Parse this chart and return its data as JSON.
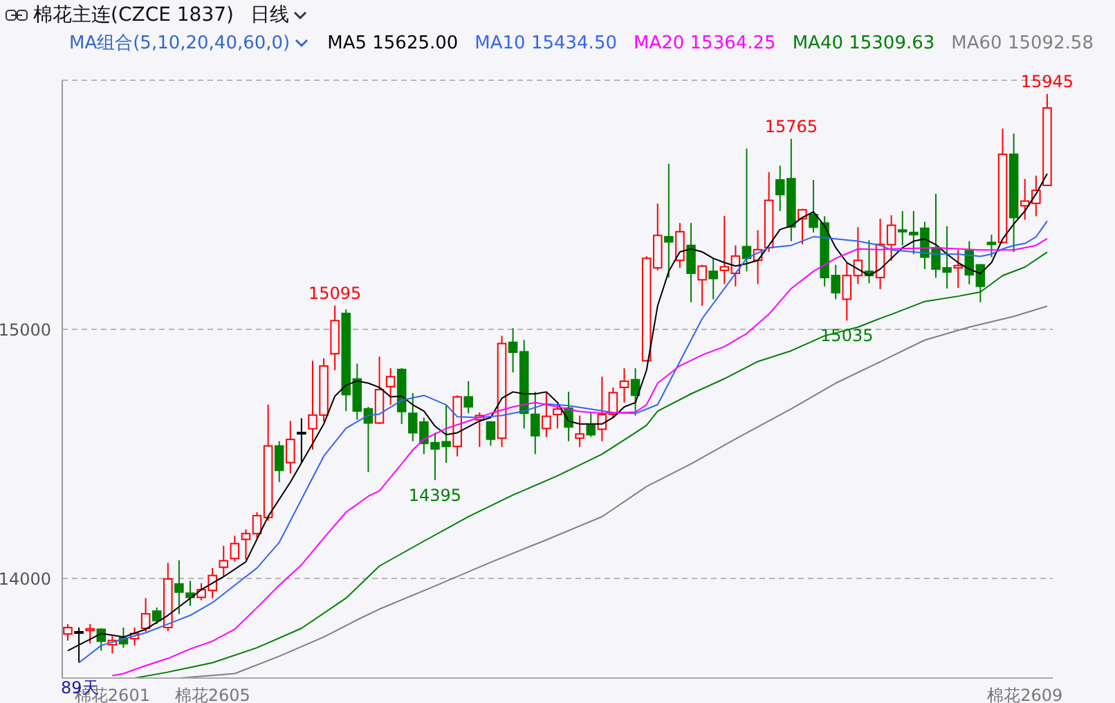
{
  "chart_data": {
    "type": "candlestick",
    "title": "棉花主连(CZCE 1837)",
    "subtitle": "日线",
    "legend_title": "MA组合(5,10,20,40,60,0)",
    "legend": "top",
    "grid": "y",
    "ylim": [
      13600,
      16000
    ],
    "yticks": [
      14000,
      15000
    ],
    "categories": [
      null,
      null,
      null,
      null,
      "棉花2601",
      null,
      null,
      null,
      null,
      null,
      null,
      null,
      null,
      "棉花2605",
      null,
      null,
      null,
      null,
      null,
      null,
      null,
      null,
      null,
      null,
      null,
      null,
      null,
      null,
      null,
      null,
      null,
      null,
      null,
      null,
      null,
      null,
      null,
      null,
      null,
      null,
      null,
      null,
      null,
      null,
      null,
      null,
      null,
      null,
      null,
      null,
      null,
      null,
      null,
      null,
      null,
      null,
      null,
      null,
      null,
      null,
      null,
      null,
      null,
      null,
      null,
      null,
      null,
      null,
      null,
      null,
      null,
      null,
      null,
      null,
      null,
      null,
      null,
      null,
      null,
      null,
      null,
      null,
      null,
      null,
      null,
      null,
      "棉花2609",
      null,
      null
    ],
    "ohlc": [
      [
        13777,
        13817,
        13751,
        13803
      ],
      [
        13786,
        13803,
        13662,
        13786
      ],
      [
        13791,
        13817,
        13739,
        13798
      ],
      [
        13796,
        13800,
        13710,
        13748
      ],
      [
        13734,
        13774,
        13700,
        13751
      ],
      [
        13762,
        13803,
        13722,
        13738
      ],
      [
        13758,
        13803,
        13731,
        13779
      ],
      [
        13800,
        13921,
        13786,
        13858
      ],
      [
        13869,
        13883,
        13817,
        13831
      ],
      [
        13803,
        14062,
        13789,
        13998
      ],
      [
        13978,
        14073,
        13857,
        13945
      ],
      [
        13941,
        13990,
        13890,
        13924
      ],
      [
        13924,
        13981,
        13912,
        13955
      ],
      [
        13952,
        14042,
        13921,
        14012
      ],
      [
        14045,
        14131,
        14007,
        14071
      ],
      [
        14080,
        14171,
        14068,
        14140
      ],
      [
        14157,
        14197,
        14076,
        14180
      ],
      [
        14180,
        14266,
        14162,
        14252
      ],
      [
        14245,
        14698,
        14232,
        14532
      ],
      [
        14532,
        14551,
        14387,
        14434
      ],
      [
        14465,
        14632,
        14422,
        14558
      ],
      [
        14586,
        14643,
        14465,
        14586
      ],
      [
        14601,
        14874,
        14517,
        14656
      ],
      [
        14656,
        14884,
        14629,
        14853
      ],
      [
        14902,
        15095,
        14836,
        15035
      ],
      [
        15064,
        15080,
        14672,
        14738
      ],
      [
        14801,
        14862,
        14637,
        14672
      ],
      [
        14681,
        14689,
        14427,
        14624
      ],
      [
        14624,
        14891,
        14620,
        14758
      ],
      [
        14770,
        14844,
        14697,
        14810
      ],
      [
        14839,
        14845,
        14620,
        14670
      ],
      [
        14663,
        14744,
        14551,
        14585
      ],
      [
        14628,
        14646,
        14499,
        14542
      ],
      [
        14545,
        14585,
        14395,
        14520
      ],
      [
        14549,
        14697,
        14464,
        14530
      ],
      [
        14530,
        14735,
        14490,
        14729
      ],
      [
        14729,
        14792,
        14663,
        14689
      ],
      [
        14637,
        14666,
        14528,
        14654
      ],
      [
        14628,
        14632,
        14533,
        14559
      ],
      [
        14563,
        14974,
        14528,
        14943
      ],
      [
        14948,
        15005,
        14827,
        14908
      ],
      [
        14910,
        14957,
        14602,
        14663
      ],
      [
        14659,
        14749,
        14499,
        14573
      ],
      [
        14602,
        14749,
        14568,
        14651
      ],
      [
        14658,
        14697,
        14602,
        14680
      ],
      [
        14684,
        14749,
        14551,
        14608
      ],
      [
        14563,
        14654,
        14528,
        14580
      ],
      [
        14615,
        14666,
        14568,
        14577
      ],
      [
        14599,
        14810,
        14551,
        14658
      ],
      [
        14659,
        14767,
        14646,
        14746
      ],
      [
        14767,
        14844,
        14706,
        14792
      ],
      [
        14798,
        14844,
        14654,
        14735
      ],
      [
        14874,
        15294,
        14871,
        15285
      ],
      [
        15247,
        15505,
        15237,
        15377
      ],
      [
        15372,
        15665,
        15208,
        15351
      ],
      [
        15277,
        15427,
        15247,
        15392
      ],
      [
        15337,
        15427,
        15109,
        15225
      ],
      [
        15199,
        15259,
        15095,
        15254
      ],
      [
        15233,
        15285,
        15121,
        15204
      ],
      [
        15237,
        15455,
        15182,
        15251
      ],
      [
        15225,
        15337,
        15173,
        15294
      ],
      [
        15332,
        15726,
        15233,
        15285
      ],
      [
        15277,
        15398,
        15182,
        15320
      ],
      [
        15328,
        15631,
        15311,
        15518
      ],
      [
        15600,
        15657,
        15475,
        15541
      ],
      [
        15605,
        15765,
        15354,
        15411
      ],
      [
        15444,
        15484,
        15341,
        15480
      ],
      [
        15461,
        15600,
        15389,
        15410
      ],
      [
        15427,
        15454,
        15173,
        15208
      ],
      [
        15216,
        15259,
        15121,
        15147
      ],
      [
        15121,
        15268,
        15035,
        15216
      ],
      [
        15216,
        15410,
        15182,
        15277
      ],
      [
        15233,
        15358,
        15185,
        15216
      ],
      [
        15208,
        15444,
        15161,
        15341
      ],
      [
        15340,
        15458,
        15276,
        15418
      ],
      [
        15399,
        15475,
        15337,
        15392
      ],
      [
        15389,
        15475,
        15302,
        15380
      ],
      [
        15406,
        15432,
        15242,
        15290
      ],
      [
        15328,
        15544,
        15207,
        15242
      ],
      [
        15247,
        15414,
        15164,
        15230
      ],
      [
        15247,
        15319,
        15167,
        15256
      ],
      [
        15316,
        15354,
        15181,
        15219
      ],
      [
        15259,
        15262,
        15109,
        15173
      ],
      [
        15349,
        15380,
        15290,
        15341
      ],
      [
        15349,
        15806,
        15345,
        15703
      ],
      [
        15703,
        15786,
        15311,
        15449
      ],
      [
        15496,
        15604,
        15440,
        15515
      ],
      [
        15506,
        15617,
        15454,
        15558
      ],
      [
        15578,
        15945,
        15575,
        15889
      ]
    ],
    "colors": [
      "#ff0000",
      "#000000",
      "#ff0000",
      "#008000",
      "#ff0000",
      "#008000",
      "#ff0000",
      "#ff0000",
      "#008000",
      "#ff0000",
      "#008000",
      "#008000",
      "#ff0000",
      "#ff0000",
      "#ff0000",
      "#ff0000",
      "#ff0000",
      "#ff0000",
      "#ff0000",
      "#008000",
      "#ff0000",
      "#000000",
      "#ff0000",
      "#ff0000",
      "#ff0000",
      "#008000",
      "#008000",
      "#008000",
      "#ff0000",
      "#ff0000",
      "#008000",
      "#008000",
      "#008000",
      "#008000",
      "#008000",
      "#ff0000",
      "#008000",
      "#ff0000",
      "#008000",
      "#ff0000",
      "#008000",
      "#008000",
      "#008000",
      "#ff0000",
      "#ff0000",
      "#008000",
      "#ff0000",
      "#008000",
      "#ff0000",
      "#ff0000",
      "#ff0000",
      "#008000",
      "#ff0000",
      "#ff0000",
      "#008000",
      "#ff0000",
      "#008000",
      "#ff0000",
      "#008000",
      "#ff0000",
      "#ff0000",
      "#008000",
      "#ff0000",
      "#ff0000",
      "#008000",
      "#008000",
      "#ff0000",
      "#008000",
      "#008000",
      "#008000",
      "#ff0000",
      "#ff0000",
      "#008000",
      "#ff0000",
      "#ff0000",
      "#008000",
      "#008000",
      "#008000",
      "#008000",
      "#008000",
      "#ff0000",
      "#008000",
      "#008000",
      "#008000",
      "#ff0000",
      "#008000",
      "#ff0000",
      "#ff0000",
      "#ff0000"
    ],
    "series": [
      {
        "type": "line",
        "name": "MA5 15625.00",
        "color": "#000000",
        "values": [
          13710,
          null,
          null,
          13779,
          null,
          13765,
          null,
          13796,
          null,
          13852,
          null,
          null,
          13955,
          null,
          14007,
          null,
          14067,
          null,
          14249,
          null,
          14387,
          null,
          14542,
          14620,
          14732,
          14776,
          14793,
          14784,
          14767,
          14729,
          14732,
          14697,
          14672,
          14611,
          14577,
          14585,
          null,
          14632,
          14646,
          14723,
          14749,
          14741,
          14741,
          14749,
          14706,
          14632,
          14620,
          14620,
          14620,
          14646,
          14689,
          14706,
          14836,
          15095,
          15233,
          15311,
          15323,
          15311,
          15285,
          15268,
          15254,
          15264,
          15277,
          15337,
          15401,
          15415,
          15449,
          15472,
          15415,
          15328,
          15268,
          15242,
          15216,
          15242,
          15285,
          15328,
          15354,
          15363,
          15340,
          15302,
          15268,
          15242,
          15224,
          15268,
          15363,
          15423,
          15475,
          15544,
          15625
        ]
      },
      {
        "type": "line",
        "name": "MA10 15434.50",
        "color": "#3366ee",
        "values": [
          null,
          13662,
          null,
          13731,
          null,
          13757,
          null,
          13782,
          null,
          13817,
          null,
          13852,
          null,
          13903,
          null,
          13973,
          null,
          14042,
          null,
          14145,
          null,
          14318,
          null,
          14491,
          null,
          14603,
          null,
          14655,
          14660,
          null,
          14715,
          null,
          14735,
          null,
          14697,
          14649,
          null,
          14646,
          null,
          14654,
          null,
          14672,
          null,
          14701,
          null,
          14694,
          null,
          14680,
          null,
          14666,
          null,
          14663,
          14680,
          14698,
          null,
          14871,
          null,
          15043,
          null,
          15164,
          null,
          15285,
          null,
          15328,
          null,
          15337,
          null,
          15372,
          null,
          15363,
          null,
          15354,
          null,
          15337,
          15319,
          null,
          15311,
          null,
          15302,
          null,
          15302,
          null,
          15293,
          15302,
          15323,
          15337,
          15345,
          15371,
          15435
        ]
      },
      {
        "type": "line",
        "name": "MA20 15364.25",
        "color": "#ff00ff",
        "values": [
          null,
          null,
          null,
          null,
          13610,
          13618,
          null,
          13650,
          null,
          13679,
          null,
          13717,
          null,
          13748,
          null,
          13796,
          null,
          13883,
          null,
          13973,
          null,
          14055,
          null,
          14162,
          null,
          14266,
          null,
          14330,
          14352,
          null,
          14460,
          14516,
          14559,
          null,
          14602,
          null,
          14632,
          null,
          14663,
          null,
          14689,
          null,
          14706,
          null,
          14689,
          null,
          14670,
          null,
          14663,
          null,
          14666,
          14668,
          14697,
          14784,
          null,
          14854,
          null,
          14897,
          null,
          14931,
          null,
          14983,
          null,
          15061,
          null,
          15164,
          null,
          15233,
          null,
          15285,
          null,
          15323,
          null,
          15320,
          15323,
          null,
          null,
          null,
          15328,
          null,
          null,
          null,
          15319,
          null,
          null,
          15319,
          null,
          15337,
          15364
        ]
      },
      {
        "type": "line",
        "name": "MA40 15309.63",
        "color": "#008000",
        "values": [
          null,
          null,
          null,
          null,
          null,
          null,
          13600,
          null,
          null,
          13624,
          null,
          null,
          null,
          13662,
          null,
          null,
          null,
          13722,
          null,
          null,
          null,
          13800,
          null,
          null,
          null,
          13921,
          null,
          null,
          14050,
          null,
          null,
          null,
          14150,
          null,
          null,
          null,
          14248,
          null,
          null,
          null,
          14335,
          null,
          null,
          null,
          14412,
          null,
          null,
          null,
          14499,
          null,
          null,
          14585,
          14615,
          14672,
          null,
          null,
          14741,
          null,
          null,
          14802,
          null,
          null,
          14871,
          null,
          null,
          14914,
          null,
          null,
          14974,
          null,
          null,
          15009,
          null,
          15044,
          15060,
          null,
          null,
          15112,
          null,
          null,
          15133,
          null,
          15150,
          null,
          15216,
          null,
          15250,
          null,
          15310
        ]
      },
      {
        "type": "line",
        "name": "MA60 15092.58",
        "color": "#808080",
        "values": [
          null,
          null,
          null,
          null,
          null,
          null,
          null,
          null,
          null,
          null,
          13600,
          null,
          null,
          null,
          null,
          13618,
          null,
          null,
          null,
          13688,
          null,
          null,
          null,
          13765,
          null,
          null,
          13834,
          null,
          13877,
          null,
          null,
          null,
          null,
          13970,
          null,
          null,
          null,
          null,
          14065,
          null,
          null,
          null,
          null,
          14155,
          null,
          null,
          null,
          null,
          14248,
          null,
          null,
          null,
          14369,
          null,
          null,
          null,
          14460,
          null,
          null,
          null,
          14560,
          null,
          null,
          null,
          null,
          14681,
          null,
          null,
          null,
          14784,
          null,
          null,
          null,
          14870,
          null,
          null,
          null,
          14957,
          null,
          null,
          null,
          15009,
          null,
          null,
          null,
          15052,
          null,
          null,
          15093
        ]
      }
    ],
    "annotations": [
      {
        "text": "15095",
        "y": 15095
      },
      {
        "text": "15765",
        "y": 15765
      },
      {
        "text": "15945",
        "y": 15945
      },
      {
        "text": "14395",
        "y": 14395
      },
      {
        "text": "15035",
        "y": 15035
      },
      "89天"
    ]
  }
}
